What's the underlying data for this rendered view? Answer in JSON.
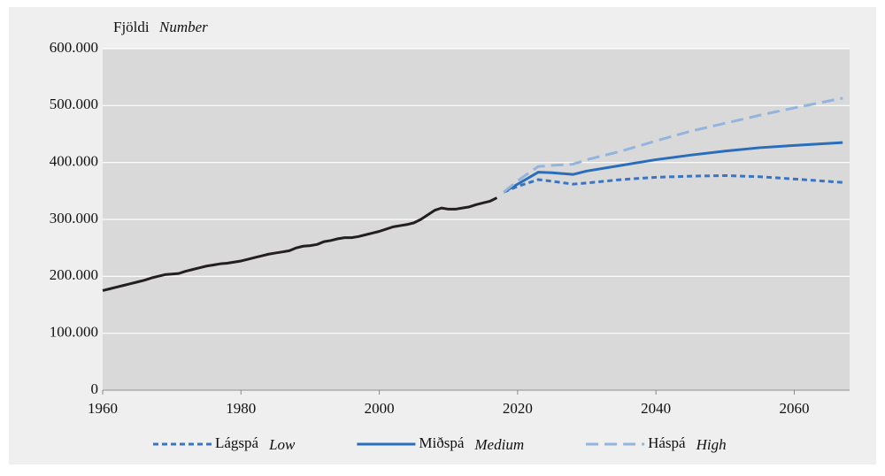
{
  "chart_data": {
    "type": "line",
    "y_label": "Fjöldi",
    "y_label_english": "Number",
    "xlim": [
      1960,
      2068
    ],
    "xticks": [
      1960,
      1980,
      2000,
      2020,
      2040,
      2060
    ],
    "ylim": [
      0,
      600000
    ],
    "yticks": [
      0,
      {
        "value": 100000,
        "label": "100.000"
      },
      {
        "value": 200000,
        "label": "200.000"
      },
      {
        "value": 300000,
        "label": "300.000"
      },
      {
        "value": 400000,
        "label": "400.000"
      },
      {
        "value": 500000,
        "label": "500.000"
      },
      {
        "value": 600000,
        "label": "600.000"
      }
    ],
    "grid": true,
    "series": [
      {
        "color": "#231f20",
        "line_style": "solid",
        "in_legend": false,
        "x": [
          1960,
          1961,
          1962,
          1963,
          1964,
          1965,
          1966,
          1967,
          1968,
          1969,
          1970,
          1971,
          1972,
          1973,
          1974,
          1975,
          1976,
          1977,
          1978,
          1979,
          1980,
          1981,
          1982,
          1983,
          1984,
          1985,
          1986,
          1987,
          1988,
          1989,
          1990,
          1991,
          1992,
          1993,
          1994,
          1995,
          1996,
          1997,
          1998,
          1999,
          2000,
          2001,
          2002,
          2003,
          2004,
          2005,
          2006,
          2007,
          2008,
          2009,
          2010,
          2011,
          2012,
          2013,
          2014,
          2015,
          2016,
          2017
        ],
        "values": [
          175000,
          178000,
          181000,
          184000,
          187000,
          190000,
          193000,
          197000,
          200000,
          203000,
          204000,
          205000,
          209000,
          212000,
          215000,
          218000,
          220000,
          222000,
          223000,
          225000,
          227000,
          230000,
          233000,
          236000,
          239000,
          241000,
          243000,
          245000,
          250000,
          253000,
          254000,
          256000,
          261000,
          263000,
          266000,
          268000,
          268000,
          270000,
          273000,
          276000,
          279000,
          283000,
          287000,
          289000,
          291000,
          294000,
          300000,
          308000,
          316000,
          320000,
          318000,
          318000,
          320000,
          322000,
          326000,
          329000,
          332000,
          338000
        ]
      },
      {
        "name": "Lágspá",
        "name_english": "Low",
        "color": "#3a75c4",
        "line_style": "short-dash",
        "in_legend": true,
        "x": [
          2018,
          2020,
          2023,
          2025,
          2028,
          2030,
          2035,
          2040,
          2045,
          2050,
          2055,
          2060,
          2067
        ],
        "values": [
          348000,
          358000,
          370000,
          367000,
          362000,
          364000,
          370000,
          374000,
          376000,
          377000,
          375000,
          371000,
          365000
        ]
      },
      {
        "name": "Miðspá",
        "name_english": "Medium",
        "color": "#2a6ebb",
        "line_style": "solid",
        "in_legend": true,
        "x": [
          2018,
          2020,
          2023,
          2025,
          2028,
          2030,
          2035,
          2040,
          2045,
          2050,
          2055,
          2060,
          2067
        ],
        "values": [
          348000,
          362000,
          383000,
          382000,
          379000,
          385000,
          395000,
          405000,
          413000,
          420000,
          426000,
          430000,
          435000
        ]
      },
      {
        "name": "Háspá",
        "name_english": "High",
        "color": "#93b4dc",
        "line_style": "long-dash",
        "in_legend": true,
        "x": [
          2018,
          2020,
          2023,
          2025,
          2028,
          2030,
          2035,
          2040,
          2045,
          2050,
          2055,
          2060,
          2067
        ],
        "values": [
          348000,
          368000,
          393000,
          395000,
          397000,
          405000,
          420000,
          438000,
          455000,
          469000,
          483000,
          496000,
          513000
        ]
      }
    ]
  }
}
